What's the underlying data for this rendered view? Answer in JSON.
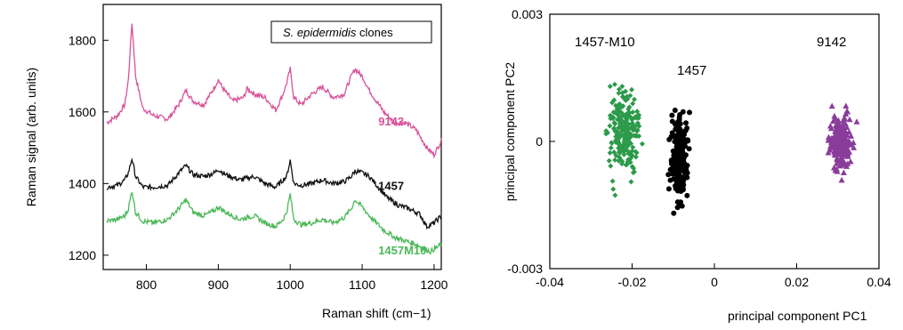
{
  "chart_data": [
    {
      "type": "line",
      "legend": "S. epidermidis clones",
      "legend_italic": "S. epidermidis",
      "legend_rest": "clones",
      "legend_placement": "top-right",
      "xlabel": "Raman shift",
      "xlabel_unit": "(cm−1)",
      "ylabel": "Raman signal  (arb. units)",
      "xlim": [
        740,
        1210
      ],
      "ylim": [
        1160,
        1900
      ],
      "xticks": [
        800,
        900,
        1000,
        1100,
        1200
      ],
      "yticks": [
        1200,
        1400,
        1600,
        1800
      ],
      "grid": false,
      "series": [
        {
          "name": "9142",
          "color": "#d9539a",
          "x": [
            745,
            760,
            770,
            775,
            780,
            785,
            795,
            810,
            830,
            845,
            855,
            865,
            880,
            895,
            900,
            905,
            920,
            935,
            940,
            950,
            965,
            980,
            990,
            995,
            1000,
            1005,
            1015,
            1030,
            1045,
            1060,
            1075,
            1085,
            1090,
            1100,
            1110,
            1130,
            1145,
            1160,
            1175,
            1190,
            1200,
            1210
          ],
          "y": [
            1570,
            1590,
            1620,
            1690,
            1850,
            1700,
            1610,
            1590,
            1580,
            1620,
            1660,
            1630,
            1620,
            1670,
            1690,
            1670,
            1630,
            1640,
            1665,
            1650,
            1640,
            1605,
            1650,
            1680,
            1720,
            1640,
            1620,
            1650,
            1670,
            1640,
            1650,
            1700,
            1720,
            1700,
            1660,
            1600,
            1570,
            1570,
            1550,
            1500,
            1480,
            1520
          ]
        },
        {
          "name": "1457",
          "color": "#111111",
          "x": [
            745,
            760,
            770,
            775,
            780,
            785,
            795,
            810,
            830,
            845,
            855,
            865,
            880,
            895,
            900,
            910,
            930,
            950,
            965,
            980,
            990,
            995,
            1000,
            1005,
            1015,
            1030,
            1045,
            1060,
            1075,
            1085,
            1090,
            1100,
            1110,
            1135,
            1150,
            1165,
            1180,
            1190,
            1200,
            1210
          ],
          "y": [
            1390,
            1395,
            1410,
            1430,
            1470,
            1420,
            1390,
            1390,
            1395,
            1430,
            1450,
            1425,
            1420,
            1430,
            1440,
            1425,
            1410,
            1420,
            1400,
            1390,
            1410,
            1420,
            1465,
            1400,
            1395,
            1400,
            1410,
            1400,
            1405,
            1420,
            1435,
            1430,
            1420,
            1360,
            1340,
            1330,
            1315,
            1280,
            1290,
            1310
          ]
        },
        {
          "name": "1457M10",
          "color": "#4cb858",
          "x": [
            745,
            760,
            770,
            775,
            780,
            785,
            795,
            810,
            830,
            845,
            855,
            865,
            880,
            895,
            900,
            910,
            930,
            950,
            965,
            980,
            990,
            995,
            1000,
            1005,
            1015,
            1030,
            1045,
            1060,
            1075,
            1085,
            1090,
            1100,
            1110,
            1130,
            1145,
            1160,
            1175,
            1185,
            1195,
            1210
          ],
          "y": [
            1295,
            1300,
            1310,
            1330,
            1380,
            1320,
            1295,
            1290,
            1300,
            1330,
            1355,
            1320,
            1310,
            1325,
            1335,
            1320,
            1300,
            1310,
            1290,
            1280,
            1300,
            1320,
            1370,
            1300,
            1285,
            1290,
            1300,
            1290,
            1305,
            1330,
            1355,
            1335,
            1310,
            1270,
            1250,
            1240,
            1230,
            1220,
            1210,
            1230
          ]
        }
      ]
    },
    {
      "type": "scatter",
      "xlabel": "principal component PC1",
      "ylabel": "principal component  PC2",
      "xlim": [
        -0.04,
        0.04
      ],
      "ylim": [
        -0.003,
        0.003
      ],
      "xticks": [
        "-0.04",
        "-0.02",
        "0",
        "0.02",
        "0.04"
      ],
      "yticks": [
        "-0.003",
        "0",
        "0.003"
      ],
      "grid": false,
      "series": [
        {
          "name": "1457-M10",
          "color": "#2c9a4a",
          "marker": "diamond",
          "center": [
            -0.022,
            0.0002
          ],
          "spread": [
            0.004,
            0.0006
          ],
          "count": 220
        },
        {
          "name": "1457",
          "color": "#000000",
          "marker": "circle",
          "center": [
            -0.0085,
            -0.0004
          ],
          "spread": [
            0.0022,
            0.0006
          ],
          "count": 220
        },
        {
          "name": "9142",
          "color": "#8a3c9b",
          "marker": "triangle",
          "center": [
            0.0305,
            0.0
          ],
          "spread": [
            0.0028,
            0.0004
          ],
          "count": 190
        }
      ]
    }
  ]
}
